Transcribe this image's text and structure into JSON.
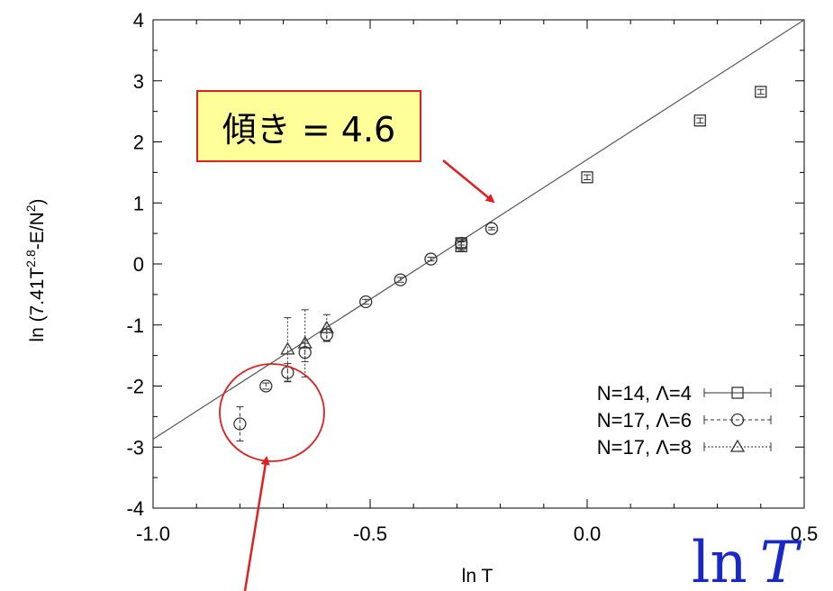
{
  "chart_data": {
    "type": "scatter",
    "title": "",
    "xlabel": "ln T",
    "ylabel": "ln (7.41T^2.8-E/N^2)",
    "ylabel_parts": {
      "a": "ln (7.41T",
      "sup1": "2.8",
      "b": "-E/N",
      "sup2": "2",
      "c": ")"
    },
    "xlim": [
      -1.0,
      0.5
    ],
    "ylim": [
      -4,
      4
    ],
    "x_tick_labels": [
      "-1.0",
      "-0.5",
      "0.0",
      "0.5"
    ],
    "y_tick_labels": [
      "-4",
      "-3",
      "-2",
      "-1",
      "0",
      "1",
      "2",
      "3",
      "4"
    ],
    "x_ticks": [
      -1.0,
      -0.5,
      0.0,
      0.5
    ],
    "y_ticks": [
      -4,
      -3,
      -2,
      -1,
      0,
      1,
      2,
      3,
      4
    ],
    "grid": false,
    "legend_position": "bottom-right",
    "fit_line": {
      "x": [
        -1.0,
        0.5
      ],
      "y": [
        -2.87,
        4.0
      ]
    },
    "series": [
      {
        "name": "N=14, Λ=4",
        "marker": "square",
        "line_style": "solid",
        "points": [
          {
            "x": -0.29,
            "y": 0.29,
            "err": 0.07
          },
          {
            "x": -0.29,
            "y": 0.34,
            "err": 0.07
          },
          {
            "x": 0.0,
            "y": 1.42,
            "err": 0.04
          },
          {
            "x": 0.26,
            "y": 2.35,
            "err": 0.04
          },
          {
            "x": 0.4,
            "y": 2.82,
            "err": 0.04
          }
        ]
      },
      {
        "name": "N=17, Λ=6",
        "marker": "circle",
        "line_style": "dashed",
        "points": [
          {
            "x": -0.8,
            "y": -2.62,
            "err": 0.28
          },
          {
            "x": -0.74,
            "y": -2.0,
            "err": 0.05
          },
          {
            "x": -0.69,
            "y": -1.78,
            "err": 0.15
          },
          {
            "x": -0.65,
            "y": -1.45,
            "err": 0.15
          },
          {
            "x": -0.6,
            "y": -1.16,
            "err": 0.1
          },
          {
            "x": -0.51,
            "y": -0.62,
            "err": 0.04
          },
          {
            "x": -0.43,
            "y": -0.26,
            "err": 0.04
          },
          {
            "x": -0.36,
            "y": 0.08,
            "err": 0.03
          },
          {
            "x": -0.29,
            "y": 0.34,
            "err": 0.03
          },
          {
            "x": -0.22,
            "y": 0.58,
            "err": 0.02
          }
        ]
      },
      {
        "name": "N=17, Λ=8",
        "marker": "triangle",
        "line_style": "dotted",
        "points": [
          {
            "x": -0.69,
            "y": -1.4,
            "err": 0.52
          },
          {
            "x": -0.65,
            "y": -1.3,
            "err": 0.55
          },
          {
            "x": -0.6,
            "y": -1.05,
            "err": 0.22
          }
        ]
      }
    ],
    "annotations": {
      "slope_label": "傾き = 4.6",
      "ln_T": {
        "ln": "ln",
        "T": "T"
      }
    }
  },
  "colors": {
    "annotation_red": "#e02020",
    "callout_fill": "#ffff99",
    "big_label_blue": "#1a28c8"
  }
}
